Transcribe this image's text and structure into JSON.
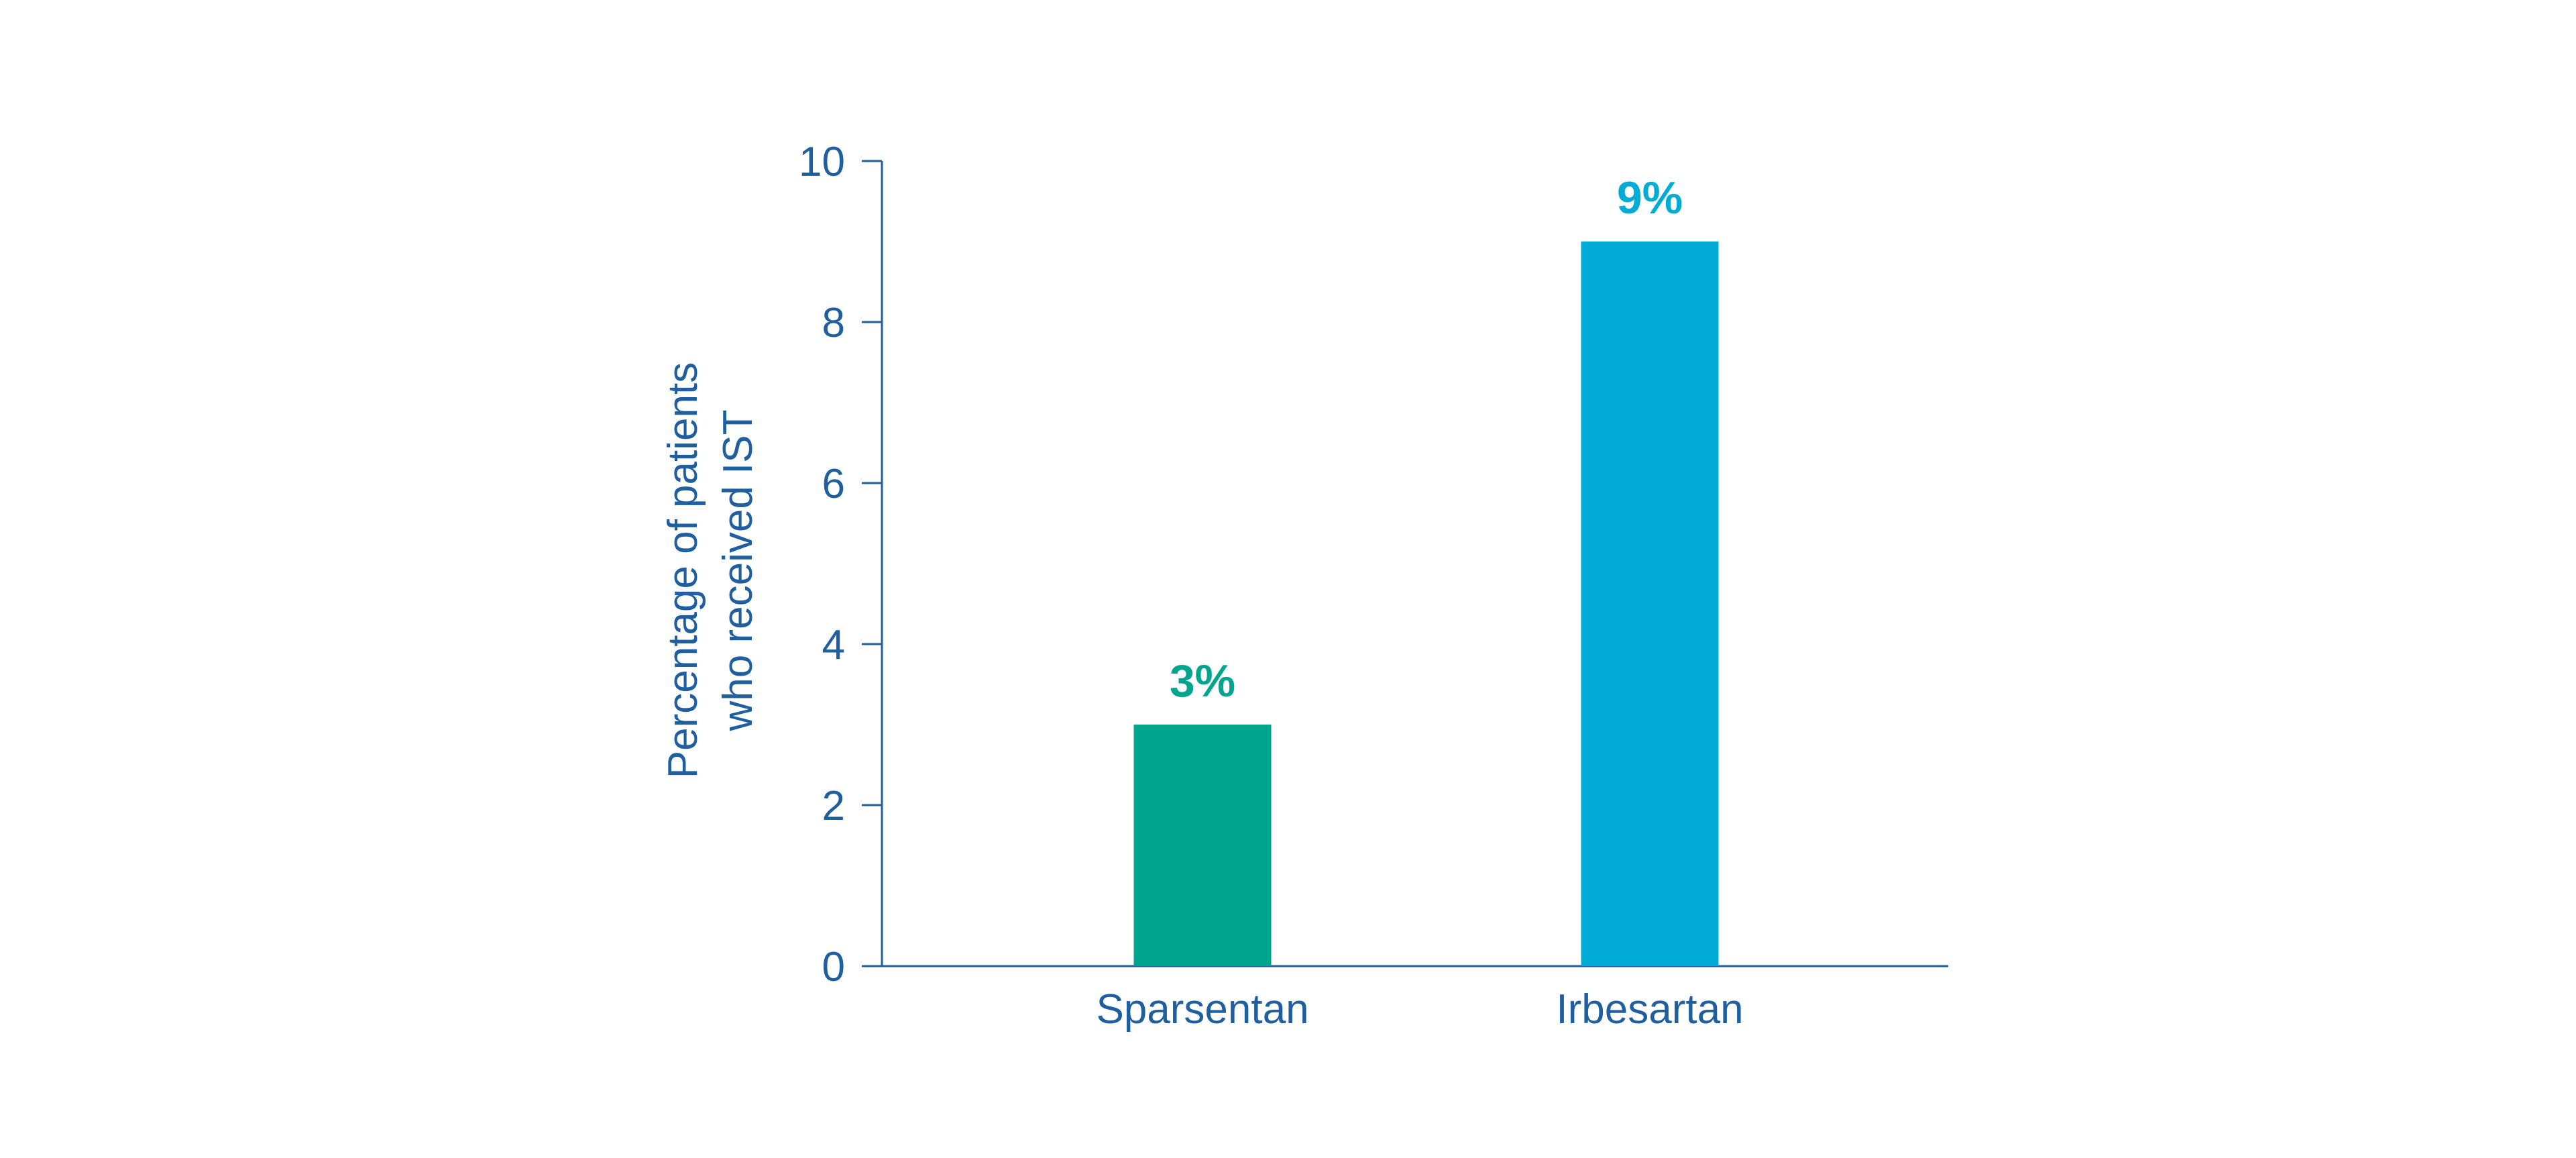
{
  "chart_data": {
    "type": "bar",
    "title": "",
    "xlabel": "",
    "ylabel_lines": [
      "Percentage of patients",
      "who received IST"
    ],
    "categories": [
      "Sparsentan",
      "Irbesartan"
    ],
    "values": [
      3,
      9
    ],
    "data_labels": [
      "3%",
      "9%"
    ],
    "bar_colors": [
      "#00a58e",
      "#00acd6"
    ],
    "ylim": [
      0,
      10
    ],
    "yticks": [
      0,
      2,
      4,
      6,
      8,
      10
    ],
    "ytick_labels": [
      "0",
      "2",
      "4",
      "6",
      "8",
      "10"
    ],
    "grid": false,
    "legend": "none",
    "axis_color": "#1f5fa0"
  }
}
